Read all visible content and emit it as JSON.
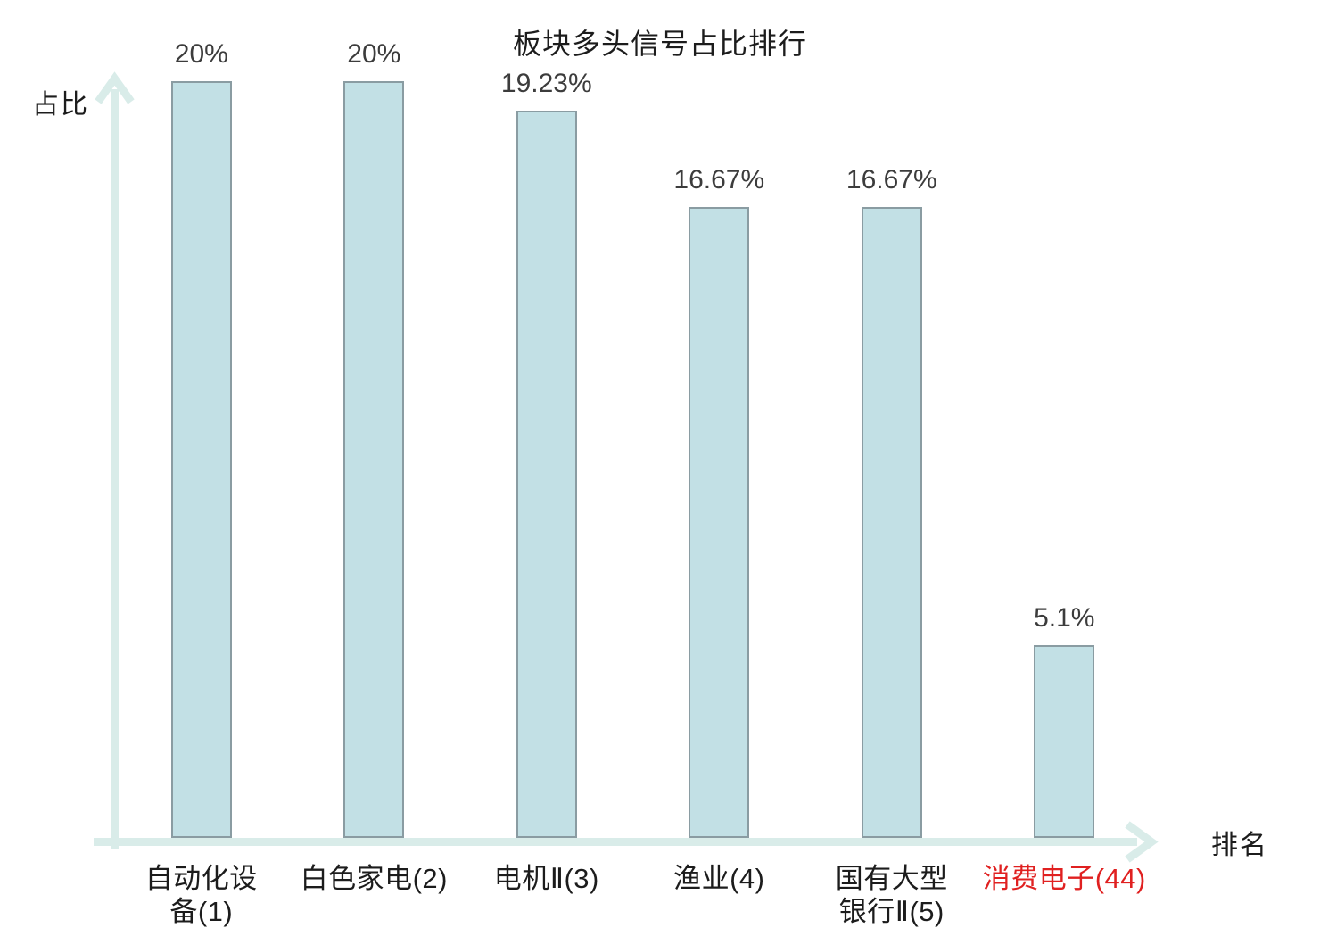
{
  "chart_data": {
    "type": "bar",
    "title": "板块多头信号占比排行",
    "xlabel": "排名",
    "ylabel": "占比",
    "categories": [
      "自动化设备(1)",
      "白色家电(2)",
      "电机Ⅱ(3)",
      "渔业(4)",
      "国有大型银行Ⅱ(5)",
      "消费电子(44)"
    ],
    "category_display": [
      "自动化设\n备(1)",
      "白色家电(2)",
      "电机Ⅱ(3)",
      "渔业(4)",
      "国有大型\n银行Ⅱ(5)",
      "消费电子(44)"
    ],
    "values": [
      20,
      20,
      19.23,
      16.67,
      16.67,
      5.1
    ],
    "value_labels": [
      "20%",
      "20%",
      "19.23%",
      "16.67%",
      "16.67%",
      "5.1%"
    ],
    "unit": "%",
    "ylim": [
      0,
      20
    ],
    "grid": false,
    "legend": "none",
    "highlighted_category_index": 5
  },
  "colors": {
    "bar_fill": "#c2e0e5",
    "bar_border": "#8a9ca2",
    "axis": "#d9ece9",
    "title_text": "#1c1c1c",
    "value_text": "#3c3c3c",
    "category_text": "#1c1c1c",
    "highlight_text": "#e02020"
  }
}
